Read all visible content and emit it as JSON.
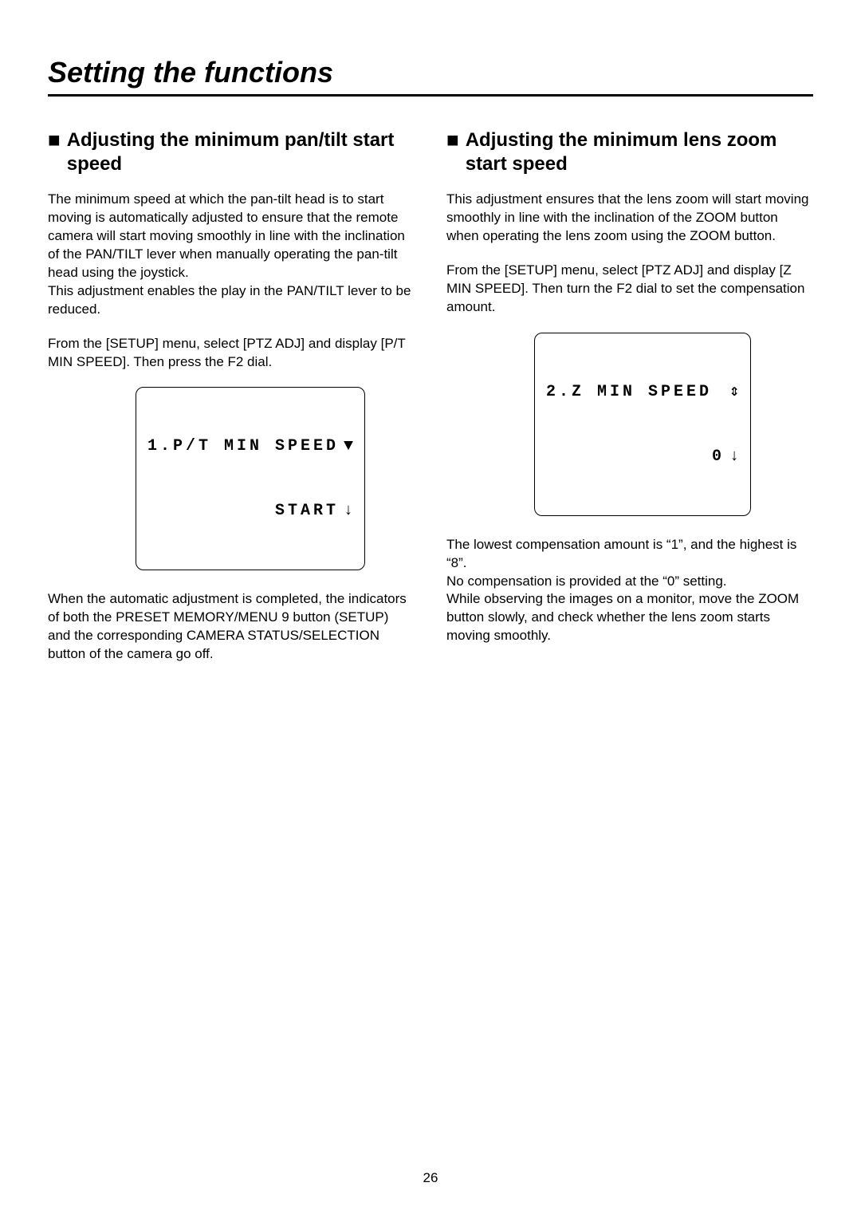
{
  "page": {
    "title": "Setting the functions",
    "number": "26"
  },
  "left": {
    "heading": "Adjusting the minimum pan/tilt start speed",
    "p1": "The minimum speed at which the pan-tilt head is to start moving is automatically adjusted to ensure that the remote camera will start moving smoothly in line with the inclination of the PAN/TILT lever when manually operating the pan-tilt head using the joystick.\nThis adjustment enables the play in the PAN/TILT lever to be reduced.",
    "p2": "From the [SETUP] menu, select [PTZ ADJ] and display [P/T MIN SPEED]. Then press the F2 dial.",
    "lcd": {
      "line1_text": "1.P/T MIN SPEED",
      "line1_sym": "▼",
      "line2_text": "          START",
      "line2_sym": "↓"
    },
    "p3": "When the automatic adjustment is completed, the indicators of both the PRESET MEMORY/MENU 9 button (SETUP) and the corresponding CAMERA STATUS/SELECTION button of the camera go off."
  },
  "right": {
    "heading": "Adjusting the minimum lens zoom start speed",
    "p1": "This adjustment ensures that the lens zoom will start moving smoothly in line with the inclination of the ZOOM button when operating the lens zoom using the ZOOM button.",
    "p2": "From the [SETUP] menu, select [PTZ ADJ] and display [Z MIN SPEED]. Then turn the F2 dial to set the compensation amount.",
    "lcd": {
      "line1_text": "2.Z MIN SPEED ",
      "line1_sym": "⇕",
      "line2_text": "             0",
      "line2_sym": "↓"
    },
    "p3": "The lowest compensation amount is “1”, and the highest is “8”.\nNo compensation is provided at the “0” setting.\nWhile observing the images on a monitor, move the ZOOM button slowly, and check whether the lens zoom starts moving smoothly."
  }
}
